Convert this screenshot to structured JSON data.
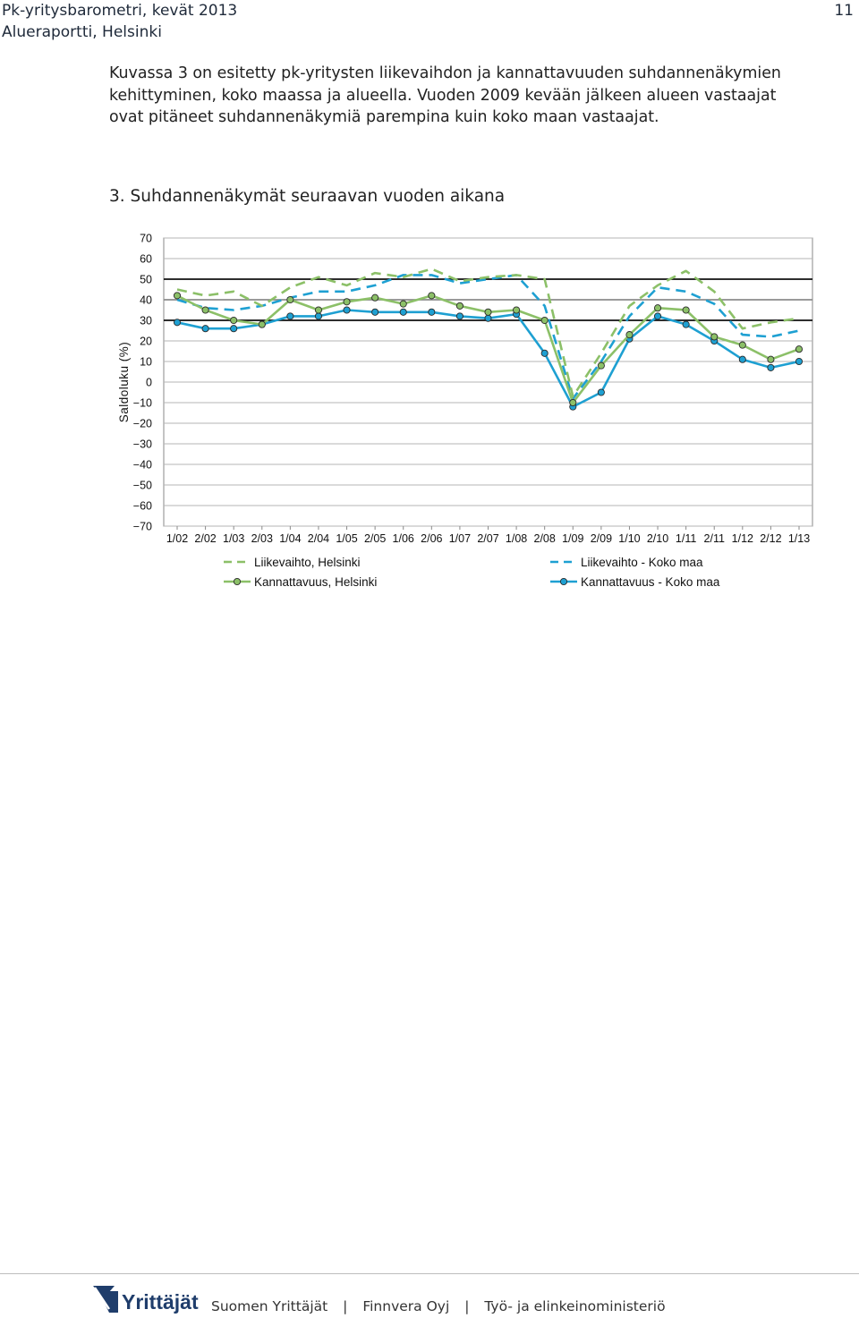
{
  "header": {
    "line1": "Pk-yritysbarometri, kevät 2013",
    "line2": "Alueraportti, Helsinki",
    "page_number": "11"
  },
  "paragraph": [
    "Kuvassa 3 on esitetty pk-yritysten liikevaihdon ja kannattavuuden suhdannenäkymien",
    "kehittyminen, koko maassa ja alueella. Vuoden 2009 kevään jälkeen alueen vastaajat",
    "ovat pitäneet suhdannenäkymiä parempina kuin koko maan vastaajat."
  ],
  "chart_data": {
    "type": "line",
    "title": "3. Suhdannenäkymät seuraavan vuoden aikana",
    "ylabel": "Saldoluku (%)",
    "xlabel": "",
    "ylim": [
      -70,
      70
    ],
    "yticks": [
      70,
      60,
      50,
      40,
      30,
      20,
      10,
      0,
      -10,
      -20,
      -30,
      -40,
      -50,
      -60,
      -70
    ],
    "emphasized_gridlines": [
      50,
      40,
      30
    ],
    "legend_position": "bottom",
    "categories": [
      "1/02",
      "2/02",
      "1/03",
      "2/03",
      "1/04",
      "2/04",
      "1/05",
      "2/05",
      "1/06",
      "2/06",
      "1/07",
      "2/07",
      "1/08",
      "2/08",
      "1/09",
      "2/09",
      "1/10",
      "2/10",
      "1/11",
      "2/11",
      "1/12",
      "2/12",
      "1/13"
    ],
    "series": [
      {
        "name": "Liikevaihto, Helsinki",
        "color": "#8cc068",
        "style": "dashed",
        "marker": false,
        "values": [
          45,
          42,
          44,
          37,
          46,
          51,
          47,
          53,
          51,
          55,
          49,
          51,
          52,
          50,
          -7,
          14,
          37,
          47,
          54,
          44,
          26,
          29,
          31
        ]
      },
      {
        "name": "Kannattavuus, Helsinki",
        "color": "#8cc068",
        "style": "solid",
        "marker": true,
        "values": [
          42,
          35,
          30,
          28,
          40,
          35,
          39,
          41,
          38,
          42,
          37,
          34,
          35,
          30,
          -10,
          8,
          23,
          36,
          35,
          22,
          18,
          11,
          16
        ]
      },
      {
        "name": "Liikevaihto - Koko maa",
        "color": "#1ea0d2",
        "style": "dashed",
        "marker": false,
        "values": [
          40,
          36,
          35,
          37,
          41,
          44,
          44,
          47,
          52,
          52,
          48,
          50,
          52,
          37,
          -8,
          10,
          32,
          46,
          44,
          38,
          23,
          22,
          25
        ]
      },
      {
        "name": "Kannattavuus - Koko maa",
        "color": "#1ea0d2",
        "style": "solid",
        "marker": true,
        "values": [
          29,
          26,
          26,
          28,
          32,
          32,
          35,
          34,
          34,
          34,
          32,
          31,
          33,
          14,
          -12,
          -5,
          21,
          32,
          28,
          20,
          11,
          7,
          10
        ]
      }
    ]
  },
  "footer": {
    "logo_text": "Yrittäjät",
    "items": [
      "Suomen Yrittäjät",
      "Finnvera Oyj",
      "Työ- ja elinkeinoministeriö"
    ],
    "separator": "|"
  }
}
